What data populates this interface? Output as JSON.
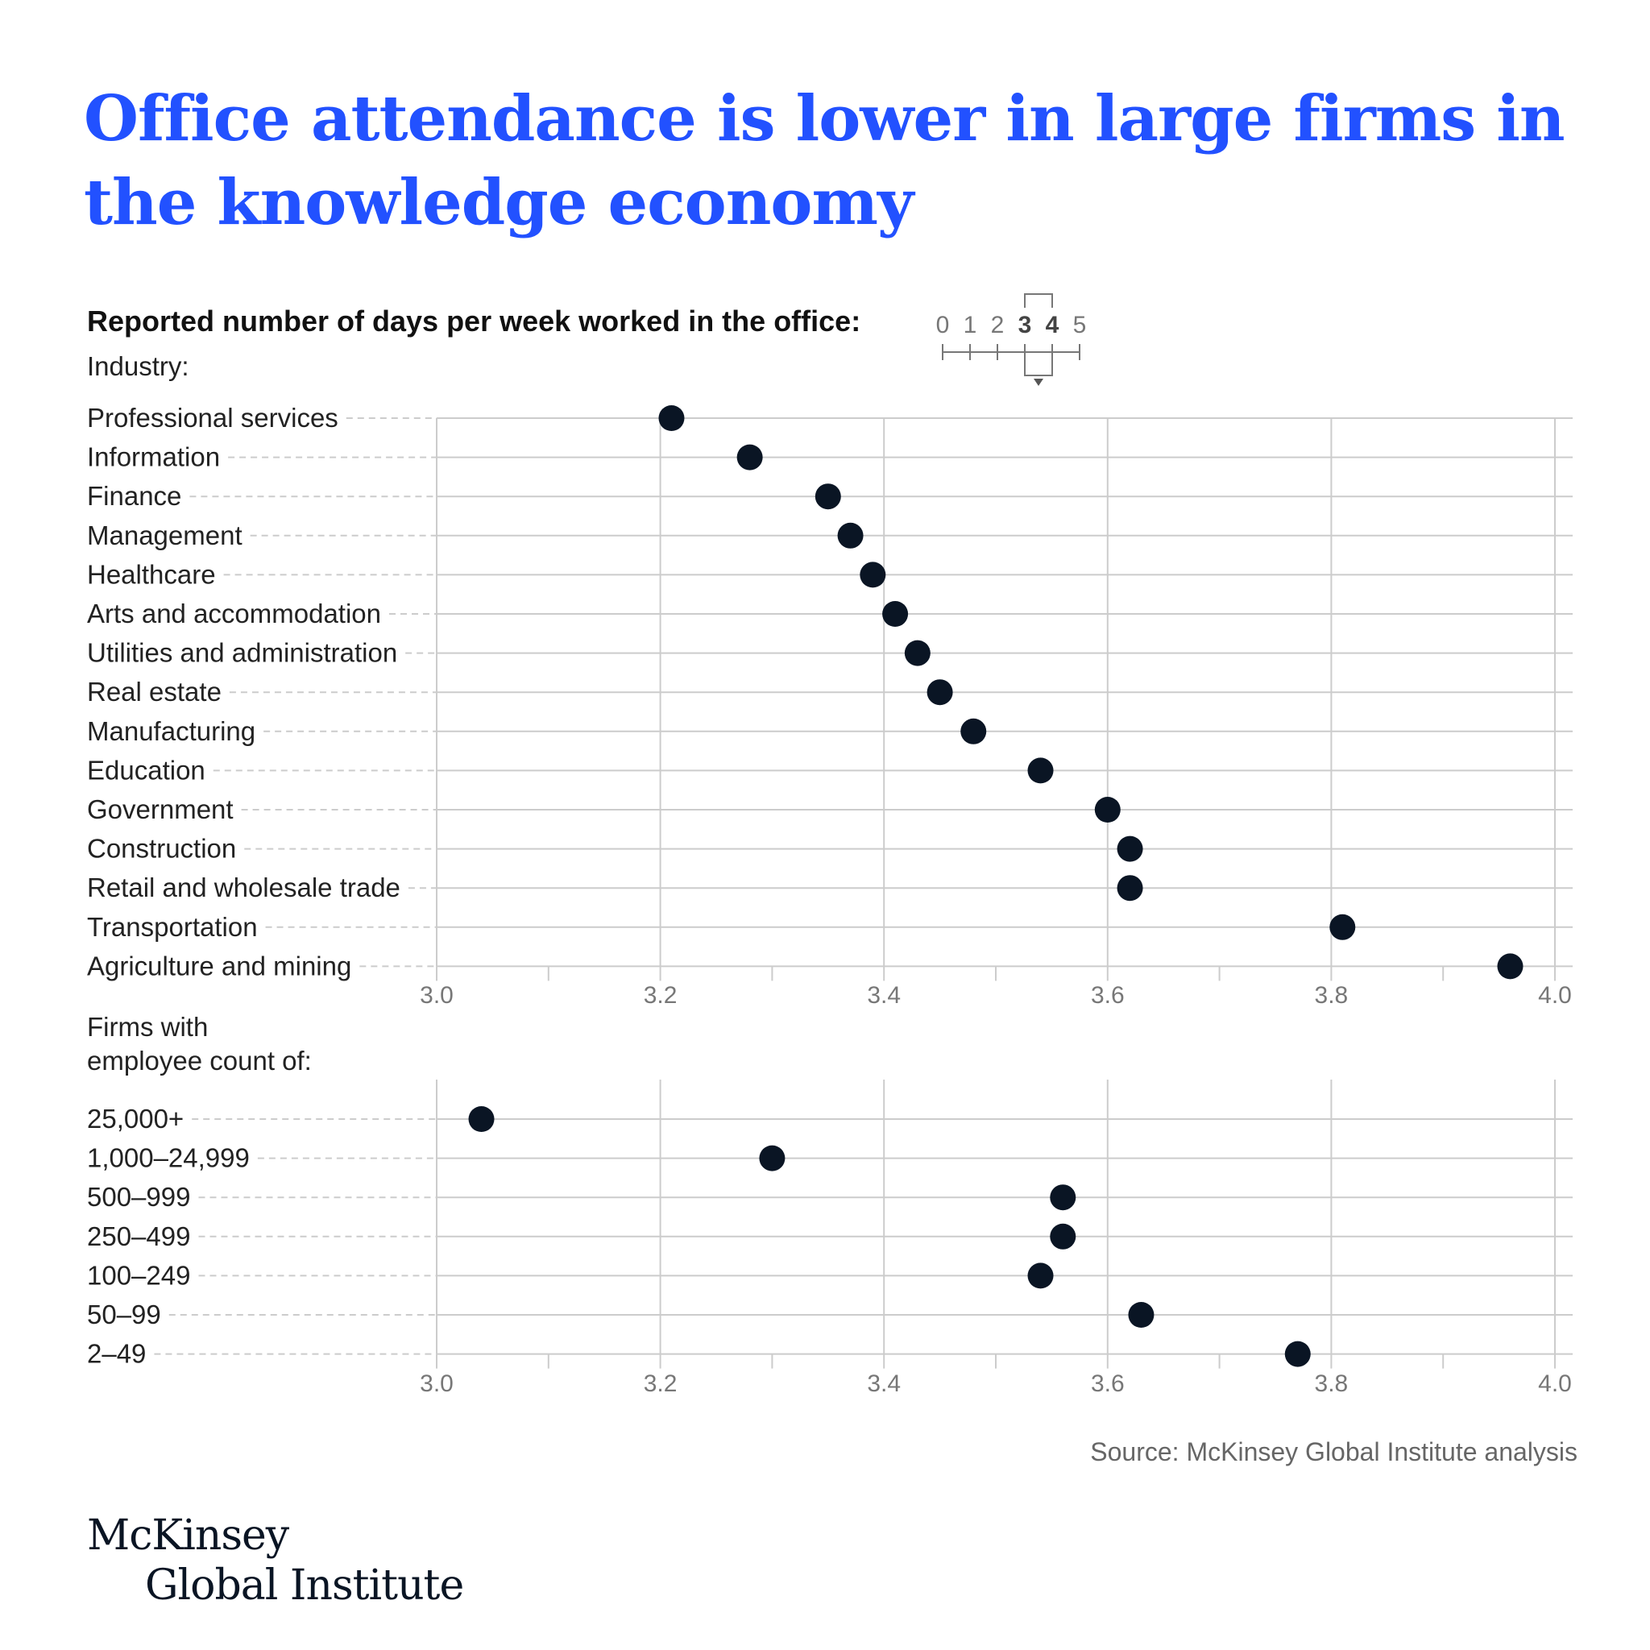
{
  "title": "Office attendance is lower in large firms in the knowledge economy",
  "subtitle": "Reported number of days per week worked in the office:",
  "scale_legend": {
    "labels": [
      "0",
      "1",
      "2",
      "3",
      "4",
      "5"
    ],
    "highlighted": [
      "3",
      "4"
    ]
  },
  "source": "Source: McKinsey Global Institute analysis",
  "logo": {
    "line1": "McKinsey",
    "line2": "Global Institute"
  },
  "colors": {
    "title": "#2251ff",
    "dot": "#0a1524",
    "grid": "#cccccc"
  },
  "chart_data": [
    {
      "type": "scatter",
      "section_label": "Industry:",
      "categories": [
        "Professional services",
        "Information",
        "Finance",
        "Management",
        "Healthcare",
        "Arts and accommodation",
        "Utilities and administration",
        "Real estate",
        "Manufacturing",
        "Education",
        "Government",
        "Construction",
        "Retail and wholesale trade",
        "Transportation",
        "Agriculture and mining"
      ],
      "values": [
        3.21,
        3.28,
        3.35,
        3.37,
        3.39,
        3.41,
        3.43,
        3.45,
        3.48,
        3.54,
        3.6,
        3.62,
        3.62,
        3.81,
        3.96
      ],
      "xlim": [
        3.0,
        4.0
      ],
      "xticks": [
        "3.0",
        "3.2",
        "3.4",
        "3.6",
        "3.8",
        "4.0"
      ],
      "grid": true
    },
    {
      "type": "scatter",
      "section_label": "Firms with employee count of:",
      "section_label_lines": [
        "Firms with",
        "employee count of:"
      ],
      "categories": [
        "25,000+",
        "1,000–24,999",
        "500–999",
        "250–499",
        "100–249",
        "50–99",
        "2–49"
      ],
      "values": [
        3.04,
        3.3,
        3.56,
        3.56,
        3.54,
        3.63,
        3.77
      ],
      "xlim": [
        3.0,
        4.0
      ],
      "xticks": [
        "3.0",
        "3.2",
        "3.4",
        "3.6",
        "3.8",
        "4.0"
      ],
      "grid": true
    }
  ]
}
